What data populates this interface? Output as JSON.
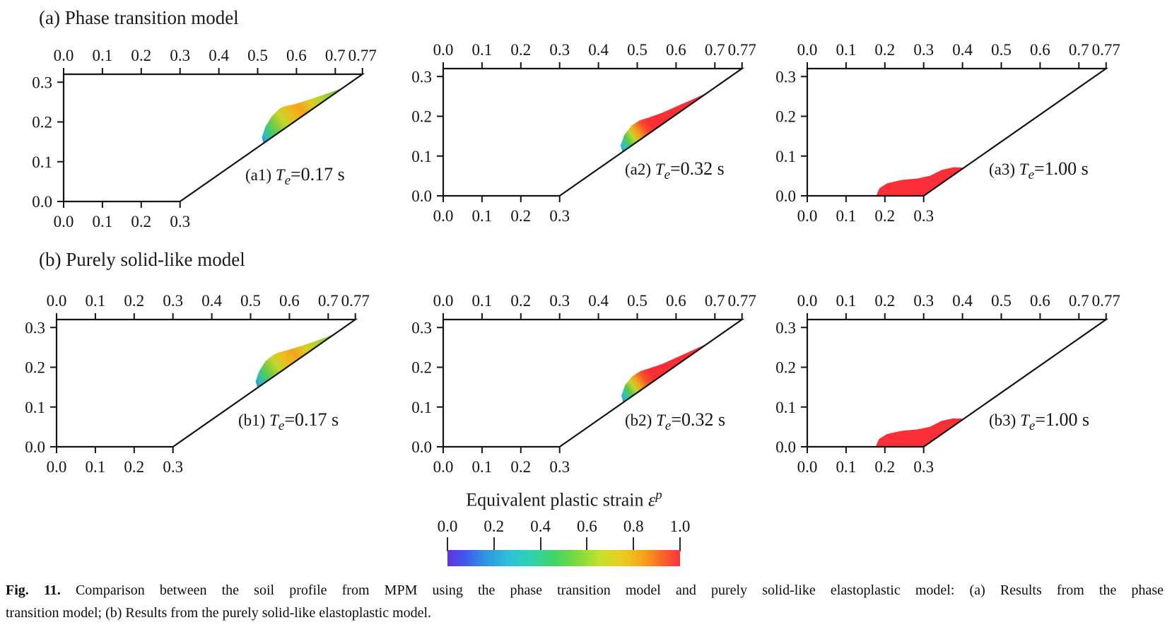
{
  "figure": {
    "panel_a_title": "(a) Phase transition model",
    "panel_b_title": "(b) Purely solid-like model",
    "caption_tag": "Fig. 11.",
    "caption_line1": "Comparison between the soil profile from MPM using the phase transition model and purely solid-like elastoplastic model: (a) Results from the phase",
    "caption_line2": "transition model; (b) Results from the purely solid-like elastoplastic model."
  },
  "colorbar": {
    "title_text": "Equivalent plastic strain",
    "symbol": "ε",
    "symbol_sup": "p",
    "ticks": [
      "0.0",
      "0.2",
      "0.4",
      "0.6",
      "0.8",
      "1.0"
    ],
    "gradient": [
      {
        "t": 0.0,
        "c": "#6331e1"
      },
      {
        "t": 0.07,
        "c": "#4156ee"
      },
      {
        "t": 0.16,
        "c": "#2f92e4"
      },
      {
        "t": 0.26,
        "c": "#2cc0da"
      },
      {
        "t": 0.36,
        "c": "#2fd3b0"
      },
      {
        "t": 0.46,
        "c": "#40d565"
      },
      {
        "t": 0.56,
        "c": "#7fda3c"
      },
      {
        "t": 0.66,
        "c": "#c8e02c"
      },
      {
        "t": 0.76,
        "c": "#eeca1f"
      },
      {
        "t": 0.85,
        "c": "#f89e1b"
      },
      {
        "t": 0.93,
        "c": "#f86128"
      },
      {
        "t": 1.0,
        "c": "#fa3340"
      }
    ]
  },
  "chart_data": [
    {
      "id": "a1",
      "type": "area",
      "tag": {
        "pre": "(a1) ",
        "T": "T",
        "sub": "e",
        "rest": "=0.17 s"
      },
      "xlim": [
        0,
        0.77
      ],
      "ylim": [
        0,
        0.32
      ],
      "x_ticks_top": {
        "values": [
          0,
          0.1,
          0.2,
          0.3,
          0.4,
          0.5,
          0.6,
          0.7,
          0.77
        ],
        "labels": [
          "0.0",
          "0.1",
          "0.2",
          "0.3",
          "0.4",
          "0.5",
          "0.6",
          "0.7",
          "0.77"
        ]
      },
      "y_ticks": {
        "values": [
          0.3,
          0.2,
          0.1,
          0
        ],
        "labels": [
          "0.3",
          "0.2",
          "0.1",
          "0.0"
        ]
      },
      "x_ticks_bottom": {
        "values": [
          0,
          0.1,
          0.2,
          0.3
        ],
        "labels": [
          "0.0",
          "0.1",
          "0.2",
          "0.3"
        ]
      },
      "outline": {
        "toe": [
          0.3,
          0
        ],
        "crest": [
          0.77,
          0.32
        ]
      },
      "region": {
        "points": [
          [
            0.515,
            0.146
          ],
          [
            0.511,
            0.162
          ],
          [
            0.52,
            0.188
          ],
          [
            0.536,
            0.214
          ],
          [
            0.556,
            0.233
          ],
          [
            0.567,
            0.239
          ],
          [
            0.594,
            0.2445
          ],
          [
            0.628,
            0.2545
          ],
          [
            0.664,
            0.2665
          ],
          [
            0.697,
            0.2775
          ],
          [
            0.721,
            0.2867
          ],
          [
            0.68,
            0.2588
          ],
          [
            0.64,
            0.2315
          ],
          [
            0.6,
            0.2043
          ],
          [
            0.56,
            0.1771
          ],
          [
            0.5315,
            0.1577
          ]
        ],
        "grad_from": [
          0.515,
          0.146
        ],
        "grad_to": [
          0.721,
          0.2867
        ],
        "gradient": [
          {
            "t": 0.0,
            "c": "#2f86d6"
          },
          {
            "t": 0.05,
            "c": "#2fb9cf"
          },
          {
            "t": 0.12,
            "c": "#3fc876"
          },
          {
            "t": 0.2,
            "c": "#7ccc3f"
          },
          {
            "t": 0.3,
            "c": "#c6d62c"
          },
          {
            "t": 0.42,
            "c": "#f0b81e"
          },
          {
            "t": 0.52,
            "c": "#f2a41c"
          },
          {
            "t": 0.63,
            "c": "#e0ca24"
          },
          {
            "t": 0.75,
            "c": "#b4d22e"
          },
          {
            "t": 0.88,
            "c": "#88c838"
          },
          {
            "t": 1.0,
            "c": "#67c341"
          }
        ]
      }
    },
    {
      "id": "a2",
      "type": "area",
      "tag": {
        "pre": "(a2) ",
        "T": "T",
        "sub": "e",
        "rest": "=0.32 s"
      },
      "xlim": [
        0,
        0.77
      ],
      "ylim": [
        0,
        0.32
      ],
      "x_ticks_top": {
        "values": [
          0,
          0.1,
          0.2,
          0.3,
          0.4,
          0.5,
          0.6,
          0.7,
          0.77
        ],
        "labels": [
          "0.0",
          "0.1",
          "0.2",
          "0.3",
          "0.4",
          "0.5",
          "0.6",
          "0.7",
          "0.77"
        ]
      },
      "y_ticks": {
        "values": [
          0.3,
          0.2,
          0.1,
          0
        ],
        "labels": [
          "0.3",
          "0.2",
          "0.1",
          "0.0"
        ]
      },
      "x_ticks_bottom": {
        "values": [
          0,
          0.1,
          0.2,
          0.3
        ],
        "labels": [
          "0.0",
          "0.1",
          "0.2",
          "0.3"
        ]
      },
      "outline": {
        "toe": [
          0.3,
          0
        ],
        "crest": [
          0.77,
          0.32
        ]
      },
      "region": {
        "points": [
          [
            0.462,
            0.11
          ],
          [
            0.457,
            0.127
          ],
          [
            0.467,
            0.154
          ],
          [
            0.486,
            0.177
          ],
          [
            0.507,
            0.19
          ],
          [
            0.53,
            0.197
          ],
          [
            0.565,
            0.209
          ],
          [
            0.605,
            0.2265
          ],
          [
            0.645,
            0.2435
          ],
          [
            0.682,
            0.2601
          ],
          [
            0.645,
            0.2349
          ],
          [
            0.6,
            0.2043
          ],
          [
            0.55,
            0.1703
          ],
          [
            0.5,
            0.1362
          ],
          [
            0.468,
            0.1144
          ]
        ],
        "grad_from": [
          0.462,
          0.11
        ],
        "grad_to": [
          0.682,
          0.2601
        ],
        "gradient": [
          {
            "t": 0.0,
            "c": "#2f9ad8"
          },
          {
            "t": 0.045,
            "c": "#30c4c4"
          },
          {
            "t": 0.105,
            "c": "#55c84a"
          },
          {
            "t": 0.165,
            "c": "#c0d72a"
          },
          {
            "t": 0.225,
            "c": "#f2a21c"
          },
          {
            "t": 0.3,
            "c": "#f8512a"
          },
          {
            "t": 0.38,
            "c": "#fb2d35"
          },
          {
            "t": 1.0,
            "c": "#fb2d35"
          }
        ]
      }
    },
    {
      "id": "a3",
      "type": "area",
      "tag": {
        "pre": "(a3) ",
        "T": "T",
        "sub": "e",
        "rest": "=1.00 s"
      },
      "xlim": [
        0,
        0.77
      ],
      "ylim": [
        0,
        0.32
      ],
      "x_ticks_top": {
        "values": [
          0,
          0.1,
          0.2,
          0.3,
          0.4,
          0.5,
          0.6,
          0.7,
          0.77
        ],
        "labels": [
          "0.0",
          "0.1",
          "0.2",
          "0.3",
          "0.4",
          "0.5",
          "0.6",
          "0.7",
          "0.77"
        ]
      },
      "y_ticks": {
        "values": [
          0.3,
          0.2,
          0.1,
          0
        ],
        "labels": [
          "0.3",
          "0.2",
          "0.1",
          "0.0"
        ]
      },
      "x_ticks_bottom": {
        "values": [
          0,
          0.1,
          0.2,
          0.3
        ],
        "labels": [
          "0.0",
          "0.1",
          "0.2",
          "0.3"
        ]
      },
      "outline": {
        "toe": [
          0.3,
          0
        ],
        "crest": [
          0.77,
          0.32
        ]
      },
      "region": {
        "fill": "#fa2f38",
        "points": [
          [
            0.178,
            0.0
          ],
          [
            0.186,
            0.019
          ],
          [
            0.206,
            0.0315
          ],
          [
            0.243,
            0.0398
          ],
          [
            0.285,
            0.0437
          ],
          [
            0.317,
            0.0506
          ],
          [
            0.347,
            0.0652
          ],
          [
            0.377,
            0.0718
          ],
          [
            0.404,
            0.0709
          ],
          [
            0.368,
            0.0463
          ],
          [
            0.334,
            0.0232
          ],
          [
            0.3,
            0.0
          ],
          [
            0.24,
            0.0
          ]
        ]
      }
    },
    {
      "id": "b1",
      "type": "area",
      "tag": {
        "pre": "(b1) ",
        "T": "T",
        "sub": "e",
        "rest": "=0.17 s"
      },
      "xlim": [
        0,
        0.77
      ],
      "ylim": [
        0,
        0.32
      ],
      "x_ticks_top": {
        "values": [
          0,
          0.1,
          0.2,
          0.3,
          0.4,
          0.5,
          0.6,
          0.7,
          0.77
        ],
        "labels": [
          "0.0",
          "0.1",
          "0.2",
          "0.3",
          "0.4",
          "0.5",
          "0.6",
          "0.7",
          "0.77"
        ]
      },
      "y_ticks": {
        "values": [
          0.3,
          0.2,
          0.1,
          0
        ],
        "labels": [
          "0.3",
          "0.2",
          "0.1",
          "0.0"
        ]
      },
      "x_ticks_bottom": {
        "values": [
          0,
          0.1,
          0.2,
          0.3
        ],
        "labels": [
          "0.0",
          "0.1",
          "0.2",
          "0.3"
        ]
      },
      "outline": {
        "toe": [
          0.3,
          0
        ],
        "crest": [
          0.77,
          0.32
        ]
      },
      "region": {
        "points": [
          [
            0.518,
            0.148
          ],
          [
            0.513,
            0.165
          ],
          [
            0.522,
            0.19
          ],
          [
            0.538,
            0.215
          ],
          [
            0.558,
            0.231
          ],
          [
            0.57,
            0.2365
          ],
          [
            0.597,
            0.2435
          ],
          [
            0.63,
            0.2535
          ],
          [
            0.666,
            0.2655
          ],
          [
            0.698,
            0.2765
          ],
          [
            0.722,
            0.2874
          ],
          [
            0.68,
            0.2588
          ],
          [
            0.64,
            0.2315
          ],
          [
            0.6,
            0.2043
          ],
          [
            0.56,
            0.1771
          ],
          [
            0.533,
            0.1587
          ]
        ],
        "grad_from": [
          0.518,
          0.148
        ],
        "grad_to": [
          0.722,
          0.2874
        ],
        "gradient": [
          {
            "t": 0.0,
            "c": "#2f86d6"
          },
          {
            "t": 0.05,
            "c": "#2fb9cf"
          },
          {
            "t": 0.12,
            "c": "#3fc876"
          },
          {
            "t": 0.2,
            "c": "#7ccc3f"
          },
          {
            "t": 0.3,
            "c": "#c6d62c"
          },
          {
            "t": 0.42,
            "c": "#f0b81e"
          },
          {
            "t": 0.52,
            "c": "#f2a41c"
          },
          {
            "t": 0.63,
            "c": "#e0ca24"
          },
          {
            "t": 0.75,
            "c": "#b4d22e"
          },
          {
            "t": 0.88,
            "c": "#88c838"
          },
          {
            "t": 1.0,
            "c": "#67c341"
          }
        ]
      }
    },
    {
      "id": "b2",
      "type": "area",
      "tag": {
        "pre": "(b2) ",
        "T": "T",
        "sub": "e",
        "rest": "=0.32 s"
      },
      "xlim": [
        0,
        0.77
      ],
      "ylim": [
        0,
        0.32
      ],
      "x_ticks_top": {
        "values": [
          0,
          0.1,
          0.2,
          0.3,
          0.4,
          0.5,
          0.6,
          0.7,
          0.77
        ],
        "labels": [
          "0.0",
          "0.1",
          "0.2",
          "0.3",
          "0.4",
          "0.5",
          "0.6",
          "0.7",
          "0.77"
        ]
      },
      "y_ticks": {
        "values": [
          0.3,
          0.2,
          0.1,
          0
        ],
        "labels": [
          "0.3",
          "0.2",
          "0.1",
          "0.0"
        ]
      },
      "x_ticks_bottom": {
        "values": [
          0,
          0.1,
          0.2,
          0.3
        ],
        "labels": [
          "0.0",
          "0.1",
          "0.2",
          "0.3"
        ]
      },
      "outline": {
        "toe": [
          0.3,
          0
        ],
        "crest": [
          0.77,
          0.32
        ]
      },
      "region": {
        "points": [
          [
            0.464,
            0.1117
          ],
          [
            0.459,
            0.129
          ],
          [
            0.469,
            0.156
          ],
          [
            0.488,
            0.178
          ],
          [
            0.509,
            0.1905
          ],
          [
            0.532,
            0.1975
          ],
          [
            0.567,
            0.2095
          ],
          [
            0.607,
            0.227
          ],
          [
            0.647,
            0.2445
          ],
          [
            0.684,
            0.2615
          ],
          [
            0.647,
            0.2363
          ],
          [
            0.602,
            0.2057
          ],
          [
            0.552,
            0.1716
          ],
          [
            0.502,
            0.1376
          ],
          [
            0.47,
            0.1158
          ]
        ],
        "grad_from": [
          0.464,
          0.1117
        ],
        "grad_to": [
          0.684,
          0.2615
        ],
        "gradient": [
          {
            "t": 0.0,
            "c": "#2f9ad8"
          },
          {
            "t": 0.045,
            "c": "#30c4c4"
          },
          {
            "t": 0.105,
            "c": "#55c84a"
          },
          {
            "t": 0.165,
            "c": "#c0d72a"
          },
          {
            "t": 0.225,
            "c": "#f2a21c"
          },
          {
            "t": 0.3,
            "c": "#f8512a"
          },
          {
            "t": 0.38,
            "c": "#fb2d35"
          },
          {
            "t": 1.0,
            "c": "#fb2d35"
          }
        ]
      }
    },
    {
      "id": "b3",
      "type": "area",
      "tag": {
        "pre": "(b3) ",
        "T": "T",
        "sub": "e",
        "rest": "=1.00 s"
      },
      "xlim": [
        0,
        0.77
      ],
      "ylim": [
        0,
        0.32
      ],
      "x_ticks_top": {
        "values": [
          0,
          0.1,
          0.2,
          0.3,
          0.4,
          0.5,
          0.6,
          0.7,
          0.77
        ],
        "labels": [
          "0.0",
          "0.1",
          "0.2",
          "0.3",
          "0.4",
          "0.5",
          "0.6",
          "0.7",
          "0.77"
        ]
      },
      "y_ticks": {
        "values": [
          0.3,
          0.2,
          0.1,
          0
        ],
        "labels": [
          "0.3",
          "0.2",
          "0.1",
          "0.0"
        ]
      },
      "x_ticks_bottom": {
        "values": [
          0,
          0.1,
          0.2,
          0.3
        ],
        "labels": [
          "0.0",
          "0.1",
          "0.2",
          "0.3"
        ]
      },
      "outline": {
        "toe": [
          0.3,
          0
        ],
        "crest": [
          0.77,
          0.32
        ]
      },
      "region": {
        "fill": "#fa2f38",
        "points": [
          [
            0.176,
            0.0
          ],
          [
            0.185,
            0.0195
          ],
          [
            0.205,
            0.0318
          ],
          [
            0.242,
            0.04
          ],
          [
            0.284,
            0.0437
          ],
          [
            0.316,
            0.0504
          ],
          [
            0.346,
            0.065
          ],
          [
            0.376,
            0.0716
          ],
          [
            0.403,
            0.0705
          ],
          [
            0.367,
            0.0456
          ],
          [
            0.333,
            0.0225
          ],
          [
            0.299,
            0.0
          ],
          [
            0.238,
            0.0
          ]
        ]
      }
    }
  ]
}
